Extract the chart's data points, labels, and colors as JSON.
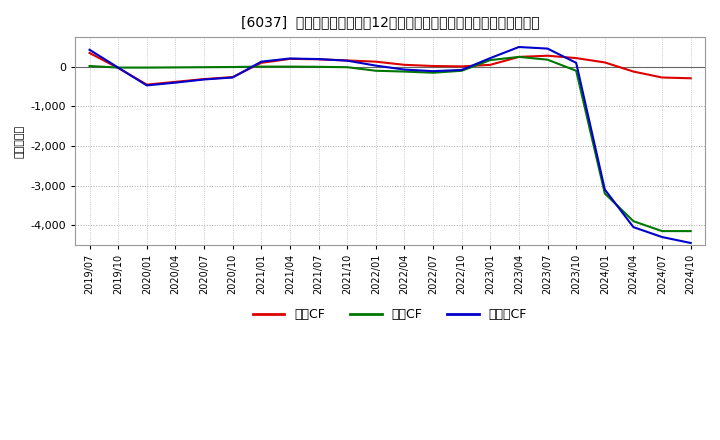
{
  "title": "[6037]  キャッシュフローの12か月移動合計の対前年同期増減額の推移",
  "ylabel": "（百万円）",
  "background_color": "#ffffff",
  "plot_bg_color": "#ffffff",
  "grid_color": "#aaaaaa",
  "ylim": [
    -4500,
    750
  ],
  "yticks": [
    0,
    -1000,
    -2000,
    -3000,
    -4000
  ],
  "legend_labels": [
    "営業CF",
    "投資CF",
    "フリーCF"
  ],
  "line_colors": [
    "#dd0000",
    "#007700",
    "#0000cc"
  ],
  "x_labels": [
    "2019/07",
    "2019/10",
    "2020/01",
    "2020/04",
    "2020/07",
    "2020/10",
    "2021/01",
    "2021/04",
    "2021/07",
    "2021/10",
    "2022/01",
    "2022/04",
    "2022/07",
    "2022/10",
    "2023/01",
    "2023/04",
    "2023/07",
    "2023/10",
    "2024/01",
    "2024/04",
    "2024/07",
    "2024/10"
  ],
  "operating_cf": [
    350,
    -30,
    -450,
    -380,
    -310,
    -260,
    100,
    200,
    190,
    160,
    130,
    50,
    20,
    10,
    50,
    250,
    280,
    220,
    110,
    -120,
    -270,
    -290
  ],
  "investing_cf": [
    20,
    -20,
    -20,
    -15,
    -10,
    -5,
    5,
    5,
    0,
    -10,
    -100,
    -120,
    -150,
    -100,
    170,
    250,
    180,
    -100,
    -3200,
    -3900,
    -4150,
    -4150
  ],
  "free_cf": [
    430,
    -20,
    -470,
    -400,
    -320,
    -270,
    130,
    210,
    195,
    155,
    30,
    -70,
    -110,
    -80,
    220,
    500,
    460,
    100,
    -3100,
    -4050,
    -4300,
    -4450
  ]
}
